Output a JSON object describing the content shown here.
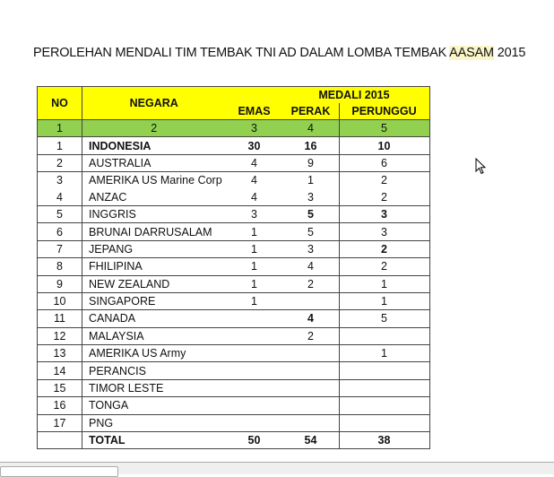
{
  "title": {
    "prefix": "PEROLEHAN MENDALI TIM TEMBAK TNI AD DALAM LOMBA TEMBAK ",
    "highlight": "AASAM",
    "suffix": " 2015"
  },
  "table": {
    "headers": {
      "no": "NO",
      "negara": "NEGARA",
      "medali": "MEDALI 2015",
      "emas": "EMAS",
      "perak": "PERAK",
      "perunggu": "PERUNGGU"
    },
    "column_numbers": [
      "1",
      "2",
      "3",
      "4",
      "5"
    ],
    "rows": [
      {
        "no": "1",
        "negara": "INDONESIA",
        "emas": "30",
        "perak": "16",
        "perunggu": "10"
      },
      {
        "no": "2",
        "negara": "AUSTRALIA",
        "emas": "4",
        "perak": "9",
        "perunggu": "6"
      },
      {
        "no": "3",
        "negara": "AMERIKA US Marine Corp",
        "emas": "4",
        "perak": "1",
        "perunggu": "2"
      },
      {
        "no": "4",
        "negara": "ANZAC",
        "emas": "4",
        "perak": "3",
        "perunggu": "2"
      },
      {
        "no": "5",
        "negara": "INGGRIS",
        "emas": "3",
        "perak": "5",
        "perunggu": "3"
      },
      {
        "no": "6",
        "negara": "BRUNAI DARRUSALAM",
        "emas": "1",
        "perak": "5",
        "perunggu": "3"
      },
      {
        "no": "7",
        "negara": "JEPANG",
        "emas": "1",
        "perak": "3",
        "perunggu": "2"
      },
      {
        "no": "8",
        "negara": "FHILIPINA",
        "emas": "1",
        "perak": "4",
        "perunggu": "2"
      },
      {
        "no": "9",
        "negara": "NEW ZEALAND",
        "emas": "1",
        "perak": "2",
        "perunggu": "1"
      },
      {
        "no": "10",
        "negara": "SINGAPORE",
        "emas": "1",
        "perak": "",
        "perunggu": "1"
      },
      {
        "no": "11",
        "negara": "CANADA",
        "emas": "",
        "perak": "4",
        "perunggu": "5"
      },
      {
        "no": "12",
        "negara": "MALAYSIA",
        "emas": "",
        "perak": "2",
        "perunggu": ""
      },
      {
        "no": "13",
        "negara": "AMERIKA US Army",
        "emas": "",
        "perak": "",
        "perunggu": "1"
      },
      {
        "no": "14",
        "negara": "PERANCIS",
        "emas": "",
        "perak": "",
        "perunggu": ""
      },
      {
        "no": "15",
        "negara": "TIMOR LESTE",
        "emas": "",
        "perak": "",
        "perunggu": ""
      },
      {
        "no": "16",
        "negara": "TONGA",
        "emas": "",
        "perak": "",
        "perunggu": ""
      },
      {
        "no": "17",
        "negara": "PNG",
        "emas": "",
        "perak": "",
        "perunggu": ""
      }
    ],
    "total": {
      "label": "TOTAL",
      "emas": "50",
      "perak": "54",
      "perunggu": "38"
    }
  },
  "colors": {
    "header_bg": "#ffff00",
    "number_row_bg": "#92d050",
    "title_highlight": "#fbf6c8"
  }
}
